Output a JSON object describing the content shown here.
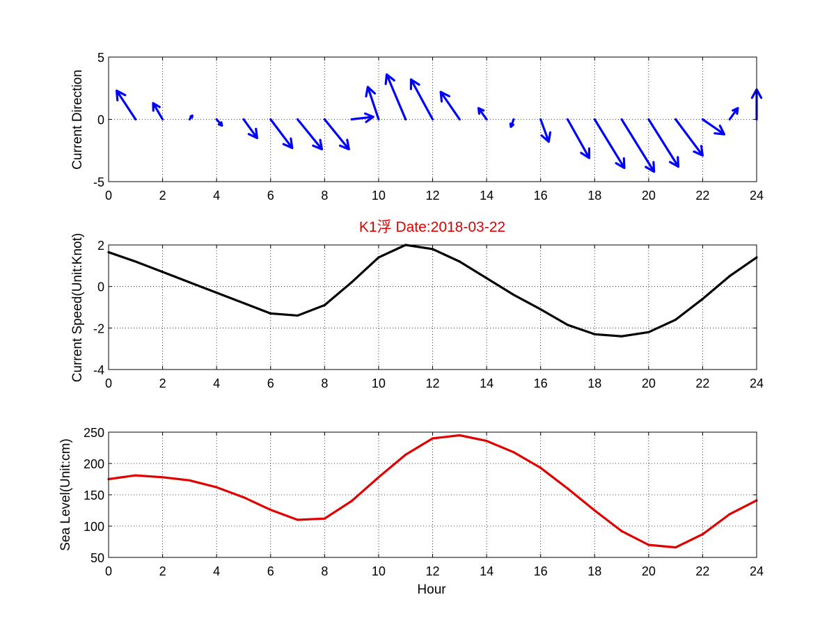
{
  "chart_data": [
    {
      "type": "quiver",
      "ylabel": "Current Direction",
      "xlim": [
        0,
        24
      ],
      "ylim": [
        -5,
        5
      ],
      "xticks": [
        "0",
        "2",
        "4",
        "6",
        "8",
        "10",
        "12",
        "14",
        "16",
        "18",
        "20",
        "22",
        "24"
      ],
      "yticks": [
        "5",
        "0",
        "-5"
      ],
      "grid": true,
      "color": "#0000ff",
      "x": [
        1,
        2,
        3,
        4,
        5,
        6,
        7,
        8,
        9,
        10,
        11,
        12,
        13,
        14,
        15,
        16,
        17,
        18,
        19,
        20,
        21,
        22,
        23,
        24
      ],
      "u": [
        -0.7,
        -0.35,
        0.1,
        0.2,
        0.5,
        0.8,
        0.9,
        0.9,
        0.8,
        -0.4,
        -0.7,
        -0.8,
        -0.7,
        -0.3,
        -0.1,
        0.3,
        0.8,
        1.1,
        1.2,
        1.1,
        1.0,
        0.8,
        0.3,
        0.0
      ],
      "v": [
        2.3,
        1.3,
        0.3,
        -0.5,
        -1.5,
        -2.3,
        -2.4,
        -2.4,
        0.2,
        2.6,
        3.6,
        3.2,
        2.2,
        0.9,
        -0.6,
        -1.8,
        -3.1,
        -3.9,
        -4.2,
        -3.8,
        -2.9,
        -1.2,
        0.9,
        2.4
      ]
    },
    {
      "type": "line",
      "title": "K1浮   Date:2018-03-22",
      "ylabel": "Current Speed(Unit:Knot)",
      "xlim": [
        0,
        24
      ],
      "ylim": [
        -4,
        2
      ],
      "xticks": [
        "0",
        "2",
        "4",
        "6",
        "8",
        "10",
        "12",
        "14",
        "16",
        "18",
        "20",
        "22",
        "24"
      ],
      "yticks": [
        "2",
        "0",
        "-2",
        "-4"
      ],
      "grid": true,
      "color": "#000000",
      "x": [
        0,
        1,
        2,
        3,
        4,
        5,
        6,
        7,
        8,
        9,
        10,
        11,
        12,
        13,
        14,
        15,
        16,
        17,
        18,
        19,
        20,
        21,
        22,
        23,
        24
      ],
      "y": [
        1.65,
        1.2,
        0.7,
        0.2,
        -0.3,
        -0.8,
        -1.3,
        -1.4,
        -0.9,
        0.2,
        1.4,
        2.0,
        1.8,
        1.2,
        0.4,
        -0.4,
        -1.1,
        -1.85,
        -2.3,
        -2.4,
        -2.2,
        -1.6,
        -0.6,
        0.5,
        1.4
      ]
    },
    {
      "type": "line",
      "ylabel": "Sea Level(Unit:cm)",
      "xlabel": "Hour",
      "xlim": [
        0,
        24
      ],
      "ylim": [
        50,
        250
      ],
      "xticks": [
        "0",
        "2",
        "4",
        "6",
        "8",
        "10",
        "12",
        "14",
        "16",
        "18",
        "20",
        "22",
        "24"
      ],
      "yticks": [
        "250",
        "200",
        "150",
        "100",
        "50"
      ],
      "grid": true,
      "color": "#e00000",
      "x": [
        0,
        1,
        2,
        3,
        4,
        5,
        6,
        7,
        8,
        9,
        10,
        11,
        12,
        13,
        14,
        15,
        16,
        17,
        18,
        19,
        20,
        21,
        22,
        23,
        24
      ],
      "y": [
        175,
        181,
        178,
        173,
        162,
        146,
        126,
        110,
        112,
        140,
        178,
        214,
        240,
        245,
        236,
        218,
        193,
        160,
        125,
        92,
        70,
        66,
        87,
        119,
        141
      ]
    }
  ]
}
